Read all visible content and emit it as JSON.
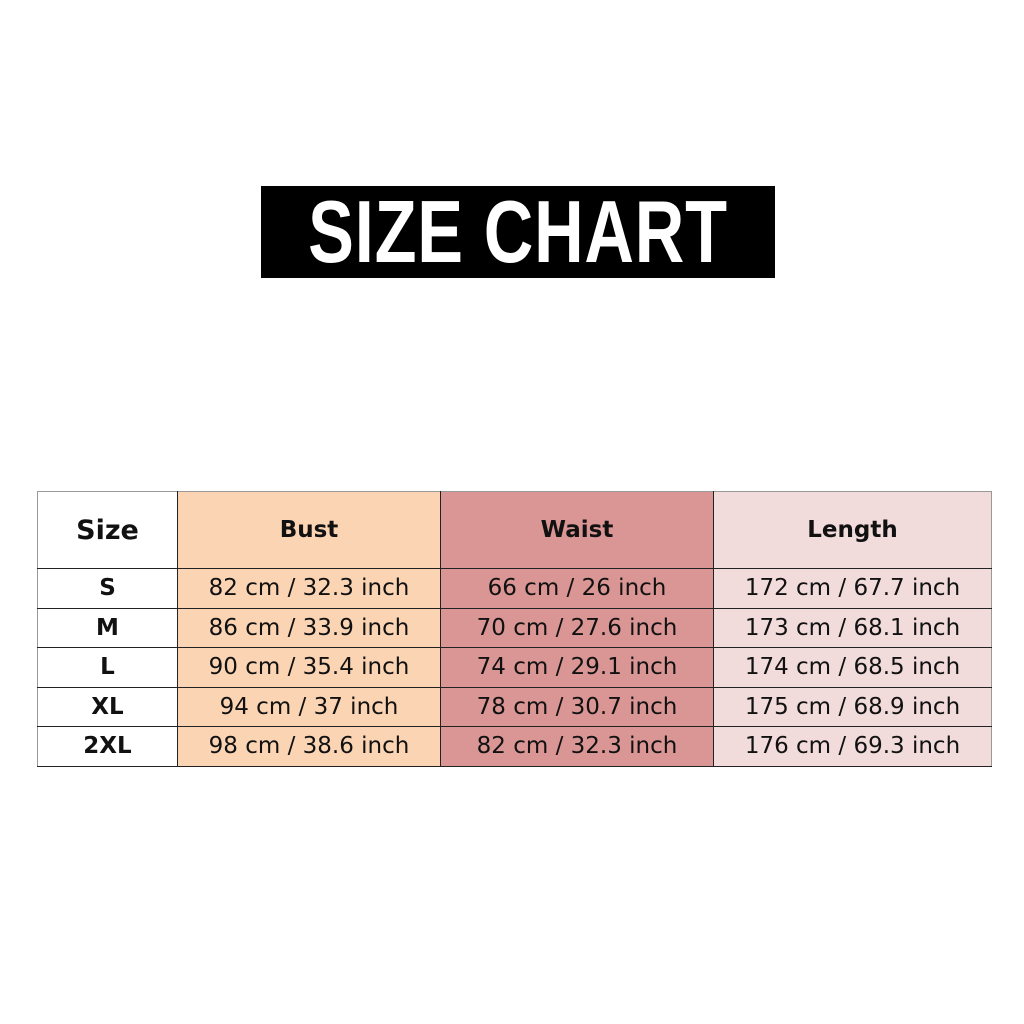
{
  "title": "SIZE CHART",
  "colors": {
    "bust": "#FBD4B4",
    "waist": "#D99694",
    "length": "#F2DCDB"
  },
  "table": {
    "headers": [
      "Size",
      "Bust",
      "Waist",
      "Length"
    ],
    "rows": [
      [
        "S",
        "82 cm / 32.3 inch",
        "66 cm / 26 inch",
        "172 cm / 67.7 inch"
      ],
      [
        "M",
        "86 cm / 33.9 inch",
        "70 cm / 27.6 inch",
        "173 cm / 68.1 inch"
      ],
      [
        "L",
        "90 cm / 35.4 inch",
        "74 cm / 29.1 inch",
        "174 cm / 68.5 inch"
      ],
      [
        "XL",
        "94 cm / 37 inch",
        "78 cm / 30.7 inch",
        "175 cm / 68.9 inch"
      ],
      [
        "2XL",
        "98 cm / 38.6 inch",
        "82 cm / 32.3 inch",
        "176 cm / 69.3 inch"
      ]
    ]
  }
}
